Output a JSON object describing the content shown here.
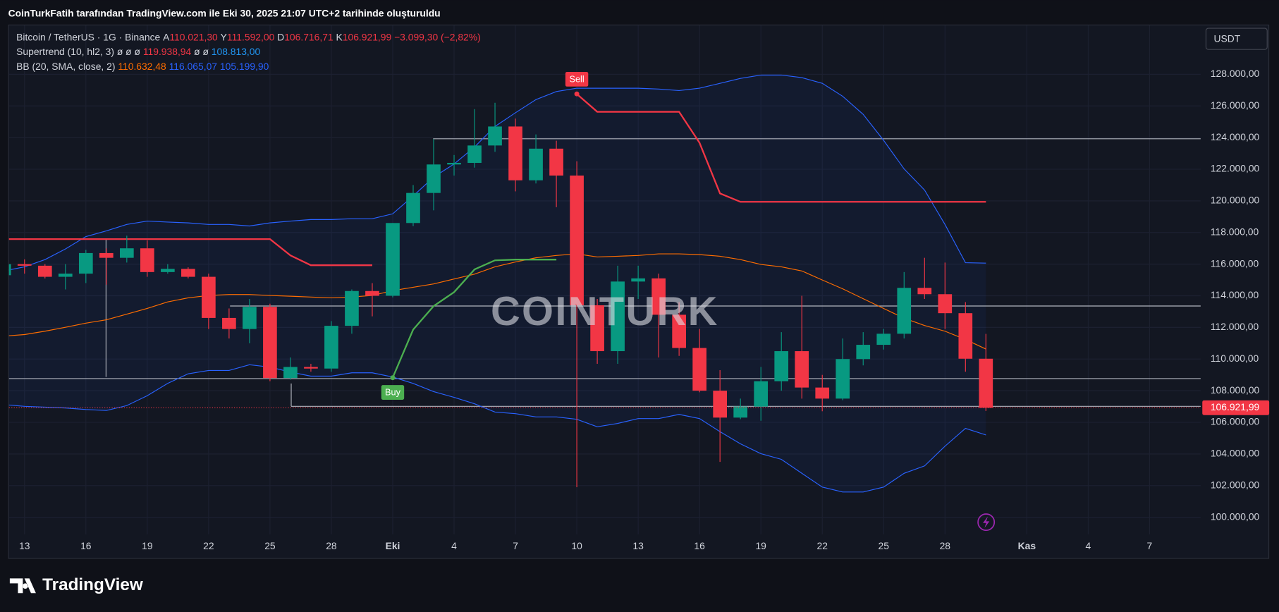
{
  "header": {
    "title": "CoinTurkFatih tarafından TradingView.com ile Eki 30, 2025 21:07 UTC+2 tarihinde oluşturuldu"
  },
  "chart_data": {
    "type": "candlestick",
    "legend": {
      "symbol": "Bitcoin / TetherUS · 1G · Binance",
      "open_label": "A",
      "open": "110.021,30",
      "high_label": "Y",
      "high": "111.592,00",
      "low_label": "D",
      "low": "106.716,71",
      "close_label": "K",
      "close": "106.921,99",
      "change": "−3.099,30 (−2,82%)"
    },
    "supertrend_legend": {
      "label": "Supertrend (10, hl2, 3)",
      "placeholder_1": "ø ø ø",
      "value_1": "119.938,94",
      "placeholder_2": "ø ø",
      "value_2": "108.813,00"
    },
    "bollinger_legend": {
      "label": "BB (20, SMA, close, 2)",
      "basis": "110.632,48",
      "upper": "116.065,07",
      "lower": "105.199,90"
    },
    "currency": "USDT",
    "watermark": "COINTURK",
    "brand": "TradingView",
    "signals": {
      "buy": "Buy",
      "sell": "Sell"
    },
    "last_price_label": "106.921,99",
    "up_color": "#089981",
    "down_color": "#f23645",
    "x": [
      0,
      1,
      2,
      3,
      4,
      5,
      6,
      7,
      8,
      9,
      10,
      11,
      12,
      13,
      14,
      15,
      16,
      17,
      18,
      19,
      20,
      21,
      22,
      23,
      24,
      25,
      26,
      27,
      28,
      29,
      30,
      31,
      32,
      33,
      34,
      35,
      36,
      37,
      38,
      39,
      40,
      41,
      42,
      43,
      44,
      45,
      46,
      47,
      48
    ],
    "open": [
      115300,
      116000,
      115900,
      115200,
      115400,
      116700,
      116400,
      117000,
      115500,
      115700,
      115200,
      112600,
      111900,
      113300,
      108800,
      109500,
      109400,
      112100,
      114300,
      114000,
      118600,
      120500,
      122300,
      122400,
      123500,
      124700,
      121300,
      123300,
      121600,
      113400,
      110500,
      114900,
      115100,
      112800,
      110700,
      108000,
      106300,
      107000,
      108600,
      110500,
      108200,
      107500,
      110000,
      110900,
      111600,
      114500,
      114100,
      112900,
      110021.3
    ],
    "high": [
      116300,
      116300,
      116000,
      116000,
      116900,
      117000,
      117800,
      117500,
      116000,
      115800,
      115400,
      113200,
      113800,
      113500,
      110100,
      109700,
      112400,
      114400,
      114800,
      118600,
      121000,
      123900,
      122900,
      125800,
      126200,
      125200,
      124200,
      123800,
      122500,
      113800,
      115900,
      115900,
      115400,
      113600,
      111900,
      109300,
      107500,
      109500,
      111700,
      114000,
      109000,
      111300,
      111700,
      111900,
      115500,
      116400,
      116100,
      113600,
      111592
    ],
    "low": [
      115000,
      115400,
      115100,
      114400,
      114800,
      114700,
      116100,
      115200,
      115400,
      115100,
      111900,
      111300,
      111000,
      108600,
      108700,
      109200,
      109200,
      111600,
      112700,
      113900,
      118400,
      119400,
      121600,
      122100,
      123100,
      120600,
      121100,
      119600,
      101900,
      109700,
      109700,
      113800,
      110100,
      110200,
      107900,
      103500,
      106200,
      106100,
      108000,
      107500,
      106700,
      107400,
      109600,
      110600,
      111300,
      113800,
      111900,
      109200,
      106716.71
    ],
    "close": [
      116000,
      115900,
      115200,
      115400,
      116700,
      116400,
      117000,
      115500,
      115700,
      115200,
      112600,
      111900,
      113300,
      108800,
      109500,
      109400,
      112100,
      114300,
      114000,
      118600,
      120500,
      122300,
      122400,
      123500,
      124700,
      121300,
      123300,
      121600,
      113400,
      110500,
      114900,
      115100,
      112800,
      110700,
      108000,
      106300,
      107000,
      108600,
      110500,
      108200,
      107500,
      110000,
      110900,
      111600,
      114500,
      114100,
      112900,
      110021.3,
      106921.99
    ],
    "bollinger": {
      "upper_color": "#2962ff",
      "basis_color": "#ff6d00",
      "lower_color": "#2962ff",
      "upper": [
        115570,
        115830,
        116290,
        116960,
        117740,
        118100,
        118510,
        118720,
        118660,
        118610,
        118510,
        118510,
        118410,
        118610,
        118720,
        118820,
        118820,
        118870,
        118870,
        119180,
        120310,
        121500,
        122330,
        123410,
        124700,
        125570,
        126400,
        126910,
        127120,
        127120,
        127120,
        127120,
        127070,
        126970,
        127120,
        127430,
        127740,
        127950,
        127950,
        127790,
        127430,
        126610,
        125470,
        123820,
        122020,
        120680,
        118510,
        116090,
        116065.07
      ],
      "basis": [
        111450,
        111550,
        111760,
        112010,
        112270,
        112480,
        112840,
        113200,
        113610,
        113870,
        114020,
        114080,
        114080,
        114020,
        113970,
        113920,
        113870,
        113920,
        114020,
        114330,
        114540,
        114750,
        115060,
        115370,
        115830,
        116140,
        116400,
        116550,
        116650,
        116450,
        116500,
        116550,
        116650,
        116650,
        116600,
        116500,
        116290,
        115980,
        115830,
        115570,
        115000,
        114440,
        113820,
        113200,
        112580,
        112120,
        111760,
        111240,
        110632.48
      ],
      "lower": [
        107120,
        107010,
        106960,
        106910,
        106810,
        106750,
        107060,
        107680,
        108460,
        109070,
        109280,
        109280,
        109640,
        109490,
        109180,
        108920,
        108920,
        109130,
        109130,
        108870,
        108460,
        107940,
        107580,
        107170,
        106650,
        106550,
        106340,
        106340,
        106190,
        105720,
        105930,
        106240,
        106240,
        106500,
        106240,
        105410,
        104640,
        104020,
        103660,
        102780,
        101910,
        101600,
        101600,
        101910,
        102780,
        103250,
        104490,
        105620,
        105199.9
      ]
    },
    "supertrend": {
      "down_color": "#f23645",
      "up_color": "#4caf50",
      "down": [
        117580,
        117580,
        117580,
        117580,
        117580,
        117580,
        117580,
        117580,
        117580,
        117580,
        117580,
        117580,
        117580,
        117580,
        116550,
        115930,
        115930,
        115930,
        115930,
        null,
        null,
        null,
        null,
        null,
        null,
        null,
        null,
        null,
        126760,
        125630,
        125630,
        125630,
        125630,
        125630,
        123670,
        120470,
        119938.94,
        119938.94,
        119938.94,
        119938.94,
        119938.94,
        119938.94,
        119938.94,
        119938.94,
        119938.94,
        119938.94,
        119938.94,
        119938.94,
        119938.94
      ],
      "up": [
        null,
        null,
        null,
        null,
        null,
        null,
        null,
        null,
        null,
        null,
        null,
        null,
        null,
        null,
        null,
        null,
        null,
        null,
        null,
        108820,
        111860,
        113350,
        114230,
        115670,
        116240,
        116290,
        116290,
        116290,
        null,
        null,
        null,
        null,
        null,
        null,
        null,
        null,
        null,
        null,
        null,
        null,
        null,
        null,
        null,
        null,
        null,
        null,
        null,
        null,
        null
      ]
    },
    "xlim": [
      0.24,
      58.5
    ],
    "xticks": [
      {
        "value": 1,
        "label": "13"
      },
      {
        "value": 4,
        "label": "16"
      },
      {
        "value": 7,
        "label": "19"
      },
      {
        "value": 10,
        "label": "22"
      },
      {
        "value": 13,
        "label": "25"
      },
      {
        "value": 16,
        "label": "28"
      },
      {
        "value": 19,
        "label": "Eki",
        "bold": true
      },
      {
        "value": 22,
        "label": "4"
      },
      {
        "value": 25,
        "label": "7"
      },
      {
        "value": 28,
        "label": "10"
      },
      {
        "value": 31,
        "label": "13"
      },
      {
        "value": 34,
        "label": "16"
      },
      {
        "value": 37,
        "label": "19"
      },
      {
        "value": 40,
        "label": "22"
      },
      {
        "value": 43,
        "label": "25"
      },
      {
        "value": 46,
        "label": "28"
      },
      {
        "value": 50,
        "label": "Kas",
        "bold": true
      },
      {
        "value": 53,
        "label": "4"
      },
      {
        "value": 56,
        "label": "7"
      }
    ],
    "ylim": [
      98917,
      131142
    ],
    "yticks": [
      {
        "value": 100000,
        "label": "100.000,00"
      },
      {
        "value": 102000,
        "label": "102.000,00"
      },
      {
        "value": 104000,
        "label": "104.000,00"
      },
      {
        "value": 106000,
        "label": "106.000,00"
      },
      {
        "value": 108000,
        "label": "108.000,00"
      },
      {
        "value": 110000,
        "label": "110.000,00"
      },
      {
        "value": 112000,
        "label": "112.000,00"
      },
      {
        "value": 114000,
        "label": "114.000,00"
      },
      {
        "value": 116000,
        "label": "116.000,00"
      },
      {
        "value": 118000,
        "label": "118.000,00"
      },
      {
        "value": 120000,
        "label": "120.000,00"
      },
      {
        "value": 122000,
        "label": "122.000,00"
      },
      {
        "value": 124000,
        "label": "124.000,00"
      },
      {
        "value": 126000,
        "label": "126.000,00"
      },
      {
        "value": 128000,
        "label": "128.000,00"
      }
    ],
    "grid": true
  }
}
